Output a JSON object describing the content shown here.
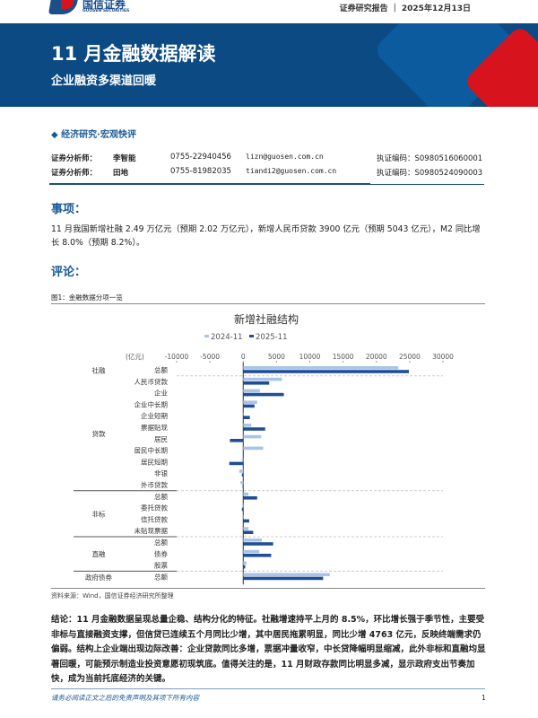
{
  "header": {
    "logo_cn": "国信证券",
    "logo_en": "GUOSEN SECURITIES",
    "report_type": "证券研究报告",
    "date": "2025年12月13日"
  },
  "banner": {
    "title": "11 月金融数据解读",
    "subtitle": "企业融资多渠道回暖"
  },
  "category": "经济研究·宏观快评",
  "analysts": [
    {
      "role": "证券分析师：",
      "name": "李智能",
      "phone": "0755-22940456",
      "email": "lizn@guosen.com.cn",
      "cert": "执证编码：S0980516060001"
    },
    {
      "role": "证券分析师：",
      "name": "田地",
      "phone": "0755-81982035",
      "email": "tiandi2@guosen.com.cn",
      "cert": "执证编码：S0980524090003"
    }
  ],
  "event": {
    "heading": "事项：",
    "text": "11 月我国新增社融 2.49 万亿元（预期 2.02 万亿元），新增人民币贷款 3900 亿元（预期 5043 亿元），M2 同比增长 8.0%（预期 8.2%）。"
  },
  "comment": {
    "heading": "评论：",
    "figure_caption": "图1：金融数据分项一览",
    "source": "资料来源：Wind，国信证券经济研究所整理",
    "conclusion": "结论：11 月金融数据呈现总量企稳、结构分化的特征。社融增速持平上月的 8.5%，环比增长强于季节性，主要受非标与直接融资支撑，但信贷已连续五个月同比少增，其中居民拖累明显，同比少增 4763 亿元，反映终端需求仍偏弱。结构上企业端出现边际改善：企业贷款同比多增，票据冲量收窄，中长贷降幅明显缩减，此外非标和直融均显著回暖，可能预示制造业投资意愿初现筑底。值得关注的是，11 月财政存款同比明显多减，显示政府支出节奏加快，成为当前托底经济的关键。"
  },
  "footer": {
    "disclaimer": "请务必阅读正文之后的免责声明及其项下所有内容",
    "page": "1"
  },
  "chart_data": {
    "type": "bar",
    "orientation": "horizontal",
    "title": "新增社融结构",
    "unit_label": "(亿元)",
    "xlim": [
      -10000,
      30000
    ],
    "xticks": [
      -10000,
      -5000,
      0,
      5000,
      10000,
      15000,
      20000,
      25000,
      30000
    ],
    "legend_position": "top",
    "colors": {
      "2024-11": "#a9c4e8",
      "2025-11": "#1f4e96"
    },
    "categories": [
      "总额",
      "人民币贷款",
      "企业",
      "企业中长期",
      "企业短期",
      "票据贴现",
      "居民",
      "居民中长期",
      "居民短期",
      "非银",
      "外币贷款",
      "总额",
      "委托贷款",
      "信托贷款",
      "未贴现票据",
      "总额",
      "债券",
      "股票",
      "总额"
    ],
    "groups": [
      {
        "label": "社融",
        "rows": [
          0,
          0
        ]
      },
      {
        "label": "贷款",
        "rows": [
          1,
          10
        ]
      },
      {
        "label": "非标",
        "rows": [
          11,
          14
        ]
      },
      {
        "label": "直融",
        "rows": [
          15,
          17
        ]
      },
      {
        "label": "政府债券",
        "rows": [
          18,
          18
        ]
      }
    ],
    "series": [
      {
        "name": "2024-11",
        "values": [
          23288,
          5800,
          2500,
          2100,
          0,
          1200,
          2700,
          3000,
          -200,
          -600,
          -400,
          800,
          0,
          100,
          800,
          2800,
          2400,
          500,
          13000
        ]
      },
      {
        "name": "2025-11",
        "values": [
          24885,
          3900,
          6100,
          1700,
          1000,
          3300,
          -2000,
          0,
          -2100,
          -200,
          -100,
          2100,
          -200,
          900,
          1500,
          4500,
          4200,
          300,
          12000
        ]
      }
    ]
  }
}
